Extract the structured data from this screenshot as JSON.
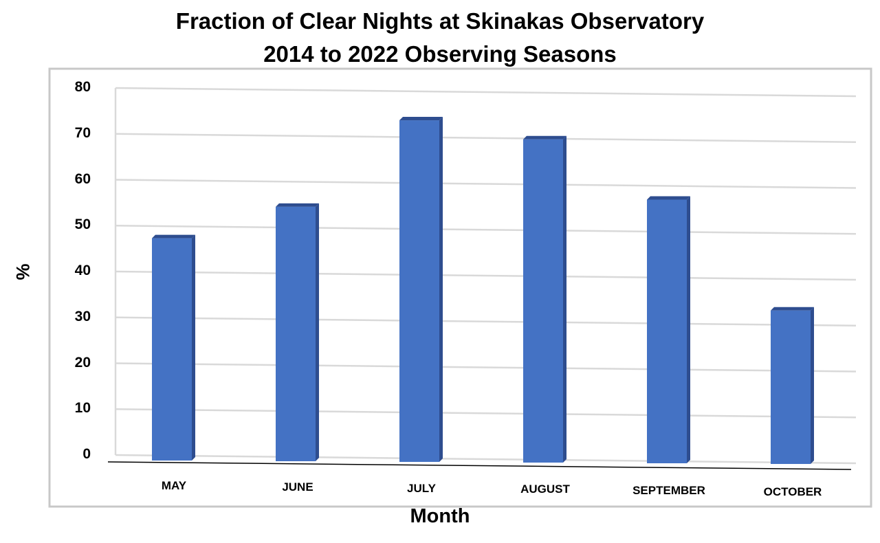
{
  "chart_data": {
    "type": "bar",
    "title": [
      "Fraction of Clear Nights at Skinakas Observatory",
      "2014 to 2022 Observing Seasons"
    ],
    "xlabel": "Month",
    "ylabel": "%",
    "categories": [
      "MAY",
      "JUNE",
      "JULY",
      "AUGUST",
      "SEPTEMBER",
      "OCTOBER"
    ],
    "values": [
      48,
      55,
      74,
      70,
      57,
      33
    ],
    "ylim": [
      0,
      80
    ],
    "yticks": [
      "0",
      "10",
      "20",
      "30",
      "40",
      "50",
      "60",
      "70",
      "80"
    ],
    "grid": true,
    "bar_color": "#4472c4",
    "bar_side_color": "#2e4d8f"
  }
}
